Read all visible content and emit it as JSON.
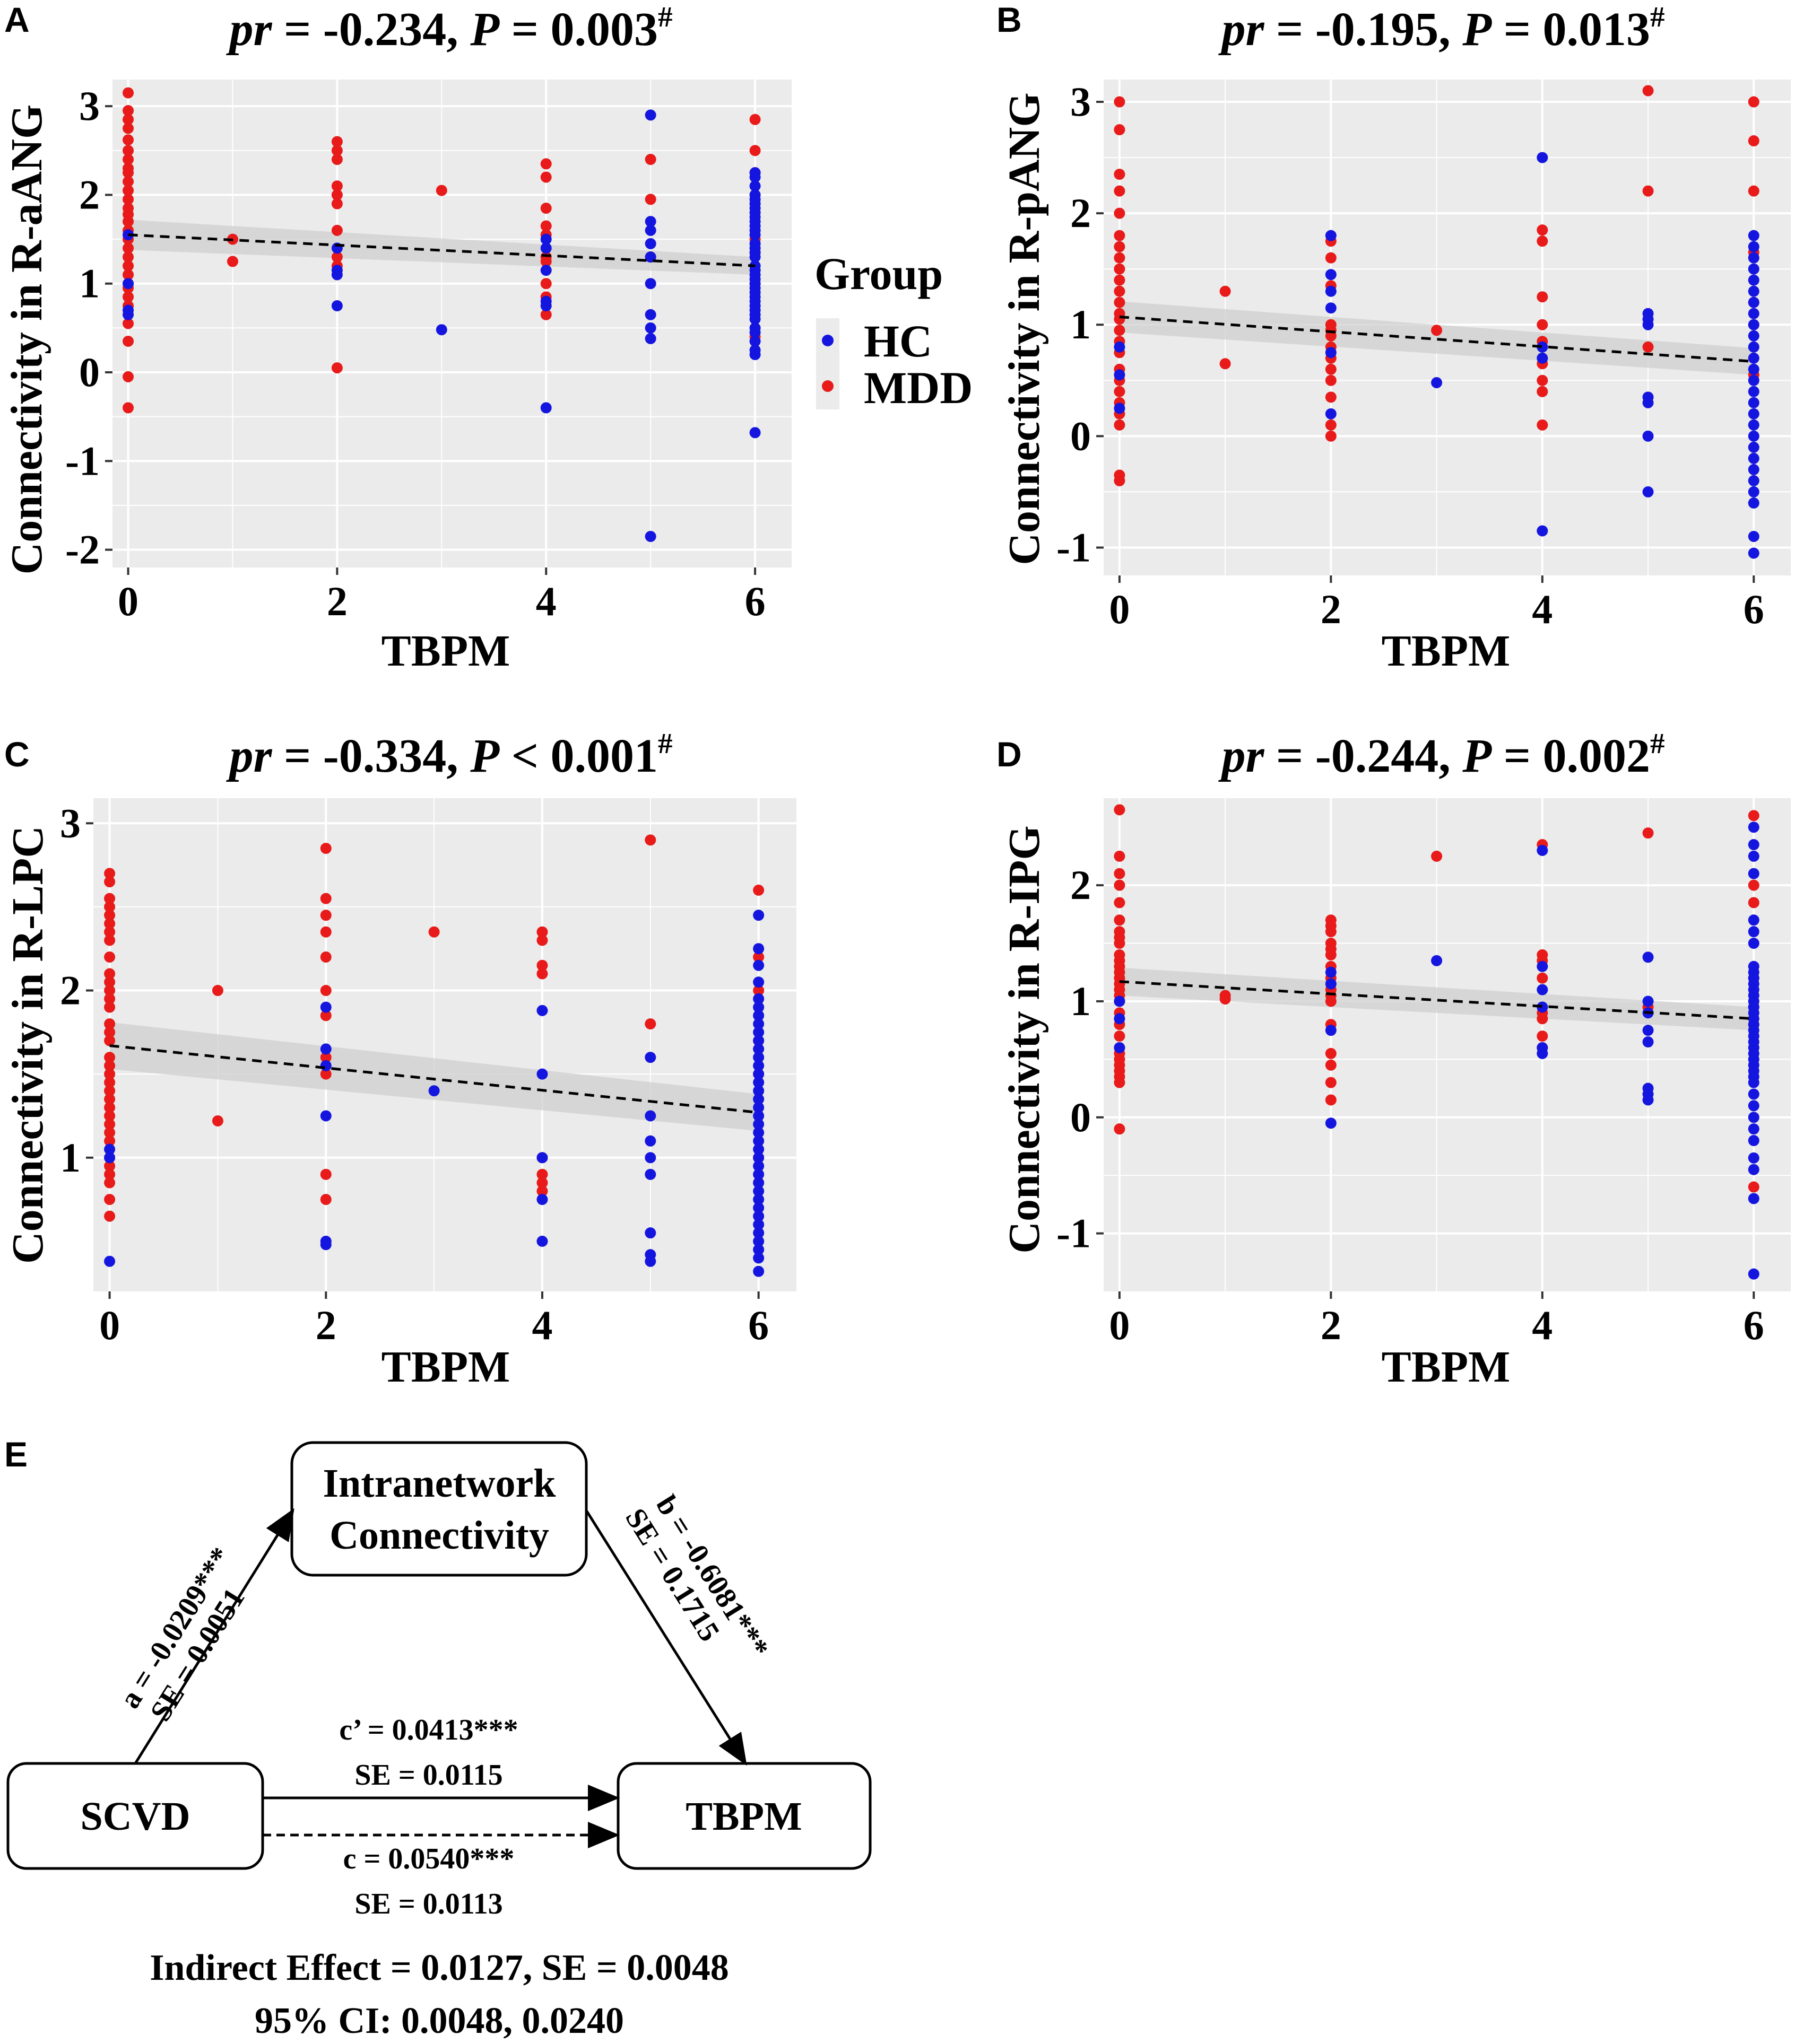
{
  "colors": {
    "HC": "#1515e0",
    "MDD": "#e81a1a",
    "panel_bg": "#ebebeb",
    "grid": "#ffffff",
    "band": "#cfcfcf"
  },
  "legend": {
    "title": "Group",
    "items": [
      {
        "label": "HC",
        "color": "#1515e0"
      },
      {
        "label": "MDD",
        "color": "#e81a1a"
      }
    ]
  },
  "chart_data": [
    {
      "id": "A",
      "letter": "A",
      "type": "scatter",
      "title_pre": "pr",
      "title_mid": " = -0.234, ",
      "title_p": "P",
      "title_val": " = 0.003",
      "title_sup": "#",
      "xlabel": "TBPM",
      "ylabel": "Connectivity in R-aANG",
      "xlim": [
        -0.15,
        6.35
      ],
      "ylim": [
        -2.2,
        3.3
      ],
      "xticks": [
        0,
        2,
        4,
        6
      ],
      "xtick_labels": [
        "0",
        "2",
        "4",
        "6"
      ],
      "yticks": [
        -2,
        -1,
        0,
        1,
        2,
        3
      ],
      "ytick_labels": [
        "-2",
        "-1",
        "0",
        "1",
        "2",
        "3"
      ],
      "fit": {
        "x": [
          0,
          6
        ],
        "y": [
          1.55,
          1.2
        ],
        "se": [
          0.17,
          0.1
        ]
      },
      "series": [
        {
          "name": "MDD",
          "x": 0,
          "values": [
            3.15,
            2.95,
            2.85,
            2.75,
            2.62,
            2.5,
            2.4,
            2.3,
            2.25,
            2.15,
            2.05,
            1.95,
            1.85,
            1.78,
            1.7,
            1.6,
            1.5,
            1.4,
            1.3,
            1.2,
            1.1,
            1.0,
            0.95,
            0.85,
            0.75,
            0.55,
            0.35,
            -0.05,
            -0.4
          ]
        },
        {
          "name": "HC",
          "x": 0,
          "values": [
            1.55,
            1.0,
            0.7,
            0.65
          ]
        },
        {
          "name": "MDD",
          "x": 1,
          "values": [
            1.5,
            1.25
          ]
        },
        {
          "name": "MDD",
          "x": 2,
          "values": [
            2.6,
            2.5,
            2.4,
            2.1,
            2.0,
            1.9,
            1.6,
            1.3,
            1.2,
            0.05
          ]
        },
        {
          "name": "HC",
          "x": 2,
          "values": [
            1.4,
            1.15,
            1.1,
            0.75
          ]
        },
        {
          "name": "MDD",
          "x": 3,
          "values": [
            2.05
          ]
        },
        {
          "name": "HC",
          "x": 3,
          "values": [
            0.48
          ]
        },
        {
          "name": "MDD",
          "x": 4,
          "values": [
            2.35,
            2.2,
            1.85,
            1.65,
            1.55,
            1.3,
            1.25,
            1.0,
            0.85,
            0.65
          ]
        },
        {
          "name": "HC",
          "x": 4,
          "values": [
            1.5,
            1.4,
            1.15,
            0.8,
            0.75,
            -0.4
          ]
        },
        {
          "name": "MDD",
          "x": 5,
          "values": [
            2.4,
            1.95,
            1.3
          ]
        },
        {
          "name": "HC",
          "x": 5,
          "values": [
            2.9,
            1.7,
            1.6,
            1.45,
            1.3,
            1.0,
            0.65,
            0.5,
            0.38,
            -1.85
          ]
        },
        {
          "name": "MDD",
          "x": 6,
          "values": [
            2.85,
            2.5,
            2.25,
            1.5,
            1.35,
            1.0,
            0.4
          ]
        },
        {
          "name": "HC",
          "x": 6,
          "values": [
            2.25,
            2.2,
            2.1,
            2.0,
            1.95,
            1.9,
            1.85,
            1.8,
            1.75,
            1.7,
            1.65,
            1.6,
            1.55,
            1.45,
            1.4,
            1.35,
            1.3,
            1.2,
            1.15,
            1.1,
            1.05,
            1.0,
            0.95,
            0.9,
            0.85,
            0.8,
            0.75,
            0.7,
            0.65,
            0.6,
            0.5,
            0.45,
            0.35,
            0.25,
            0.2,
            -0.68
          ]
        }
      ]
    },
    {
      "id": "B",
      "letter": "B",
      "type": "scatter",
      "title_pre": "pr",
      "title_mid": " = -0.195, ",
      "title_p": "P",
      "title_val": " = 0.013",
      "title_sup": "#",
      "xlabel": "TBPM",
      "ylabel": "Connectivity in R-pANG",
      "xlim": [
        -0.15,
        6.35
      ],
      "ylim": [
        -1.25,
        3.2
      ],
      "xticks": [
        0,
        2,
        4,
        6
      ],
      "xtick_labels": [
        "0",
        "2",
        "4",
        "6"
      ],
      "yticks": [
        -1,
        0,
        1,
        2,
        3
      ],
      "ytick_labels": [
        "-1",
        "0",
        "1",
        "2",
        "3"
      ],
      "fit": {
        "x": [
          0,
          6
        ],
        "y": [
          1.07,
          0.67
        ],
        "se": [
          0.14,
          0.12
        ]
      },
      "series": [
        {
          "name": "MDD",
          "x": 0,
          "values": [
            3.0,
            2.75,
            2.35,
            2.2,
            2.0,
            1.8,
            1.7,
            1.6,
            1.5,
            1.4,
            1.3,
            1.2,
            1.1,
            1.05,
            0.95,
            0.85,
            0.75,
            0.6,
            0.5,
            0.4,
            0.3,
            0.2,
            0.1,
            -0.35,
            -0.4
          ]
        },
        {
          "name": "HC",
          "x": 0,
          "values": [
            0.8,
            0.55,
            0.25
          ]
        },
        {
          "name": "MDD",
          "x": 1,
          "values": [
            1.3,
            0.65
          ]
        },
        {
          "name": "MDD",
          "x": 2,
          "values": [
            1.75,
            1.6,
            1.35,
            1.0,
            0.95,
            0.9,
            0.8,
            0.7,
            0.6,
            0.5,
            0.35,
            0.1,
            0.0
          ]
        },
        {
          "name": "HC",
          "x": 2,
          "values": [
            1.8,
            1.45,
            1.3,
            1.15,
            0.75,
            0.2
          ]
        },
        {
          "name": "MDD",
          "x": 3,
          "values": [
            0.95
          ]
        },
        {
          "name": "HC",
          "x": 3,
          "values": [
            0.48
          ]
        },
        {
          "name": "MDD",
          "x": 4,
          "values": [
            1.85,
            1.75,
            1.25,
            1.0,
            0.85,
            0.65,
            0.5,
            0.4,
            0.1
          ]
        },
        {
          "name": "HC",
          "x": 4,
          "values": [
            2.5,
            0.8,
            0.7,
            -0.85
          ]
        },
        {
          "name": "MDD",
          "x": 5,
          "values": [
            3.1,
            2.2,
            0.8
          ]
        },
        {
          "name": "HC",
          "x": 5,
          "values": [
            1.1,
            1.05,
            1.0,
            0.35,
            0.3,
            0.0,
            -0.5
          ]
        },
        {
          "name": "MDD",
          "x": 6,
          "values": [
            3.0,
            2.65,
            2.2,
            1.65,
            1.2,
            1.0,
            0.55
          ]
        },
        {
          "name": "HC",
          "x": 6,
          "values": [
            1.8,
            1.7,
            1.6,
            1.5,
            1.4,
            1.3,
            1.2,
            1.1,
            1.0,
            0.9,
            0.8,
            0.7,
            0.6,
            0.5,
            0.4,
            0.3,
            0.2,
            0.1,
            0.0,
            -0.1,
            -0.2,
            -0.3,
            -0.4,
            -0.5,
            -0.6,
            -0.9,
            -1.05
          ]
        }
      ]
    },
    {
      "id": "C",
      "letter": "C",
      "type": "scatter",
      "title_pre": "pr",
      "title_mid": " = -0.334, ",
      "title_p": "P",
      "title_val": " < 0.001",
      "title_sup": "#",
      "xlabel": "TBPM",
      "ylabel": "Connectivity in R-LPC",
      "xlim": [
        -0.15,
        6.35
      ],
      "ylim": [
        0.2,
        3.15
      ],
      "xticks": [
        0,
        2,
        4,
        6
      ],
      "xtick_labels": [
        "0",
        "2",
        "4",
        "6"
      ],
      "yticks": [
        1,
        2,
        3
      ],
      "ytick_labels": [
        "1",
        "2",
        "3"
      ],
      "fit": {
        "x": [
          0,
          6
        ],
        "y": [
          1.67,
          1.27
        ],
        "se": [
          0.14,
          0.11
        ]
      },
      "series": [
        {
          "name": "MDD",
          "x": 0,
          "values": [
            2.7,
            2.65,
            2.55,
            2.5,
            2.45,
            2.4,
            2.35,
            2.3,
            2.2,
            2.1,
            2.05,
            2.0,
            1.95,
            1.9,
            1.8,
            1.75,
            1.7,
            1.6,
            1.55,
            1.5,
            1.45,
            1.4,
            1.35,
            1.3,
            1.25,
            1.2,
            1.15,
            1.1,
            1.0,
            0.95,
            0.9,
            0.85,
            0.75,
            0.65
          ]
        },
        {
          "name": "HC",
          "x": 0,
          "values": [
            1.05,
            1.0,
            0.38
          ]
        },
        {
          "name": "MDD",
          "x": 1,
          "values": [
            2.0,
            1.22
          ]
        },
        {
          "name": "MDD",
          "x": 2,
          "values": [
            2.85,
            2.55,
            2.45,
            2.35,
            2.2,
            2.0,
            1.85,
            1.6,
            1.5,
            0.9,
            0.75
          ]
        },
        {
          "name": "HC",
          "x": 2,
          "values": [
            1.9,
            1.65,
            1.55,
            1.25,
            0.5,
            0.48
          ]
        },
        {
          "name": "MDD",
          "x": 3,
          "values": [
            2.35
          ]
        },
        {
          "name": "HC",
          "x": 3,
          "values": [
            1.4
          ]
        },
        {
          "name": "MDD",
          "x": 4,
          "values": [
            2.35,
            2.3,
            2.15,
            2.1,
            1.0,
            0.9,
            0.85,
            0.8
          ]
        },
        {
          "name": "HC",
          "x": 4,
          "values": [
            1.88,
            1.5,
            1.0,
            0.75,
            0.5
          ]
        },
        {
          "name": "MDD",
          "x": 5,
          "values": [
            2.9,
            1.8
          ]
        },
        {
          "name": "HC",
          "x": 5,
          "values": [
            1.6,
            1.25,
            1.1,
            1.0,
            0.9,
            0.55,
            0.42,
            0.38
          ]
        },
        {
          "name": "MDD",
          "x": 6,
          "values": [
            2.6,
            2.2,
            2.0,
            1.7,
            1.5,
            1.0,
            0.85
          ]
        },
        {
          "name": "HC",
          "x": 6,
          "values": [
            2.45,
            2.25,
            2.15,
            2.05,
            1.95,
            1.9,
            1.85,
            1.8,
            1.75,
            1.7,
            1.65,
            1.6,
            1.55,
            1.5,
            1.45,
            1.4,
            1.35,
            1.3,
            1.25,
            1.2,
            1.15,
            1.1,
            1.05,
            1.0,
            0.95,
            0.9,
            0.85,
            0.8,
            0.75,
            0.7,
            0.65,
            0.6,
            0.55,
            0.5,
            0.45,
            0.4,
            0.32
          ]
        }
      ]
    },
    {
      "id": "D",
      "letter": "D",
      "type": "scatter",
      "title_pre": "pr",
      "title_mid": " = -0.244, ",
      "title_p": "P",
      "title_val": " = 0.002",
      "title_sup": "#",
      "xlabel": "TBPM",
      "ylabel": "Connectivity in R-IPG",
      "xlim": [
        -0.15,
        6.35
      ],
      "ylim": [
        -1.5,
        2.75
      ],
      "xticks": [
        0,
        2,
        4,
        6
      ],
      "xtick_labels": [
        "0",
        "2",
        "4",
        "6"
      ],
      "yticks": [
        -1,
        0,
        1,
        2
      ],
      "ytick_labels": [
        "-1",
        "0",
        "1",
        "2"
      ],
      "fit": {
        "x": [
          0,
          6
        ],
        "y": [
          1.17,
          0.85
        ],
        "se": [
          0.12,
          0.1
        ]
      },
      "series": [
        {
          "name": "MDD",
          "x": 0,
          "values": [
            2.65,
            2.25,
            2.1,
            2.0,
            1.85,
            1.7,
            1.6,
            1.55,
            1.5,
            1.4,
            1.35,
            1.3,
            1.25,
            1.2,
            1.15,
            1.1,
            1.05,
            1.0,
            0.9,
            0.8,
            0.7,
            0.6,
            0.55,
            0.5,
            0.45,
            0.4,
            0.35,
            0.3,
            -0.1
          ]
        },
        {
          "name": "HC",
          "x": 0,
          "values": [
            1.0,
            0.85,
            0.6
          ]
        },
        {
          "name": "MDD",
          "x": 1,
          "values": [
            1.05,
            1.02
          ]
        },
        {
          "name": "MDD",
          "x": 2,
          "values": [
            1.7,
            1.65,
            1.6,
            1.5,
            1.45,
            1.4,
            1.3,
            1.2,
            1.1,
            1.05,
            1.0,
            0.8,
            0.55,
            0.45,
            0.3,
            0.15
          ]
        },
        {
          "name": "HC",
          "x": 2,
          "values": [
            1.25,
            1.15,
            0.75,
            -0.05
          ]
        },
        {
          "name": "MDD",
          "x": 3,
          "values": [
            2.25
          ]
        },
        {
          "name": "HC",
          "x": 3,
          "values": [
            1.35
          ]
        },
        {
          "name": "MDD",
          "x": 4,
          "values": [
            2.35,
            1.4,
            1.35,
            1.2,
            0.9,
            0.85,
            0.7,
            0.6
          ]
        },
        {
          "name": "HC",
          "x": 4,
          "values": [
            2.3,
            1.3,
            1.1,
            0.95,
            0.6,
            0.55
          ]
        },
        {
          "name": "MDD",
          "x": 5,
          "values": [
            2.45,
            0.95
          ]
        },
        {
          "name": "HC",
          "x": 5,
          "values": [
            1.38,
            1.0,
            0.9,
            0.75,
            0.65,
            0.25,
            0.2,
            0.15
          ]
        },
        {
          "name": "MDD",
          "x": 6,
          "values": [
            2.6,
            2.0,
            1.85,
            1.2,
            0.95,
            0.8,
            -0.6
          ]
        },
        {
          "name": "HC",
          "x": 6,
          "values": [
            2.5,
            2.35,
            2.25,
            2.1,
            1.7,
            1.6,
            1.5,
            1.3,
            1.25,
            1.2,
            1.15,
            1.1,
            1.05,
            1.0,
            0.95,
            0.9,
            0.85,
            0.8,
            0.75,
            0.7,
            0.65,
            0.6,
            0.55,
            0.5,
            0.45,
            0.4,
            0.35,
            0.3,
            0.2,
            0.1,
            0.0,
            -0.1,
            -0.2,
            -0.35,
            -0.45,
            -0.7,
            -1.35
          ]
        }
      ]
    }
  ],
  "mediation": {
    "letter": "E",
    "box_top_line1": "Intranetwork",
    "box_top_line2": "Connectivity",
    "box_left": "SCVD",
    "box_right": "TBPM",
    "path_a_line1": "a = -0.0209***",
    "path_a_line2": "SE = 0.0051",
    "path_b_line1": "b = -0.6081***",
    "path_b_line2": "SE = 0.1715",
    "path_cp_line1": "c’ = 0.0413***",
    "path_cp_line2": "SE = 0.0115",
    "path_c_line1": "c = 0.0540***",
    "path_c_line2": "SE = 0.0113",
    "summary_line1": "Indirect Effect = 0.0127, SE = 0.0048",
    "summary_line2": "95% CI: 0.0048, 0.0240"
  }
}
